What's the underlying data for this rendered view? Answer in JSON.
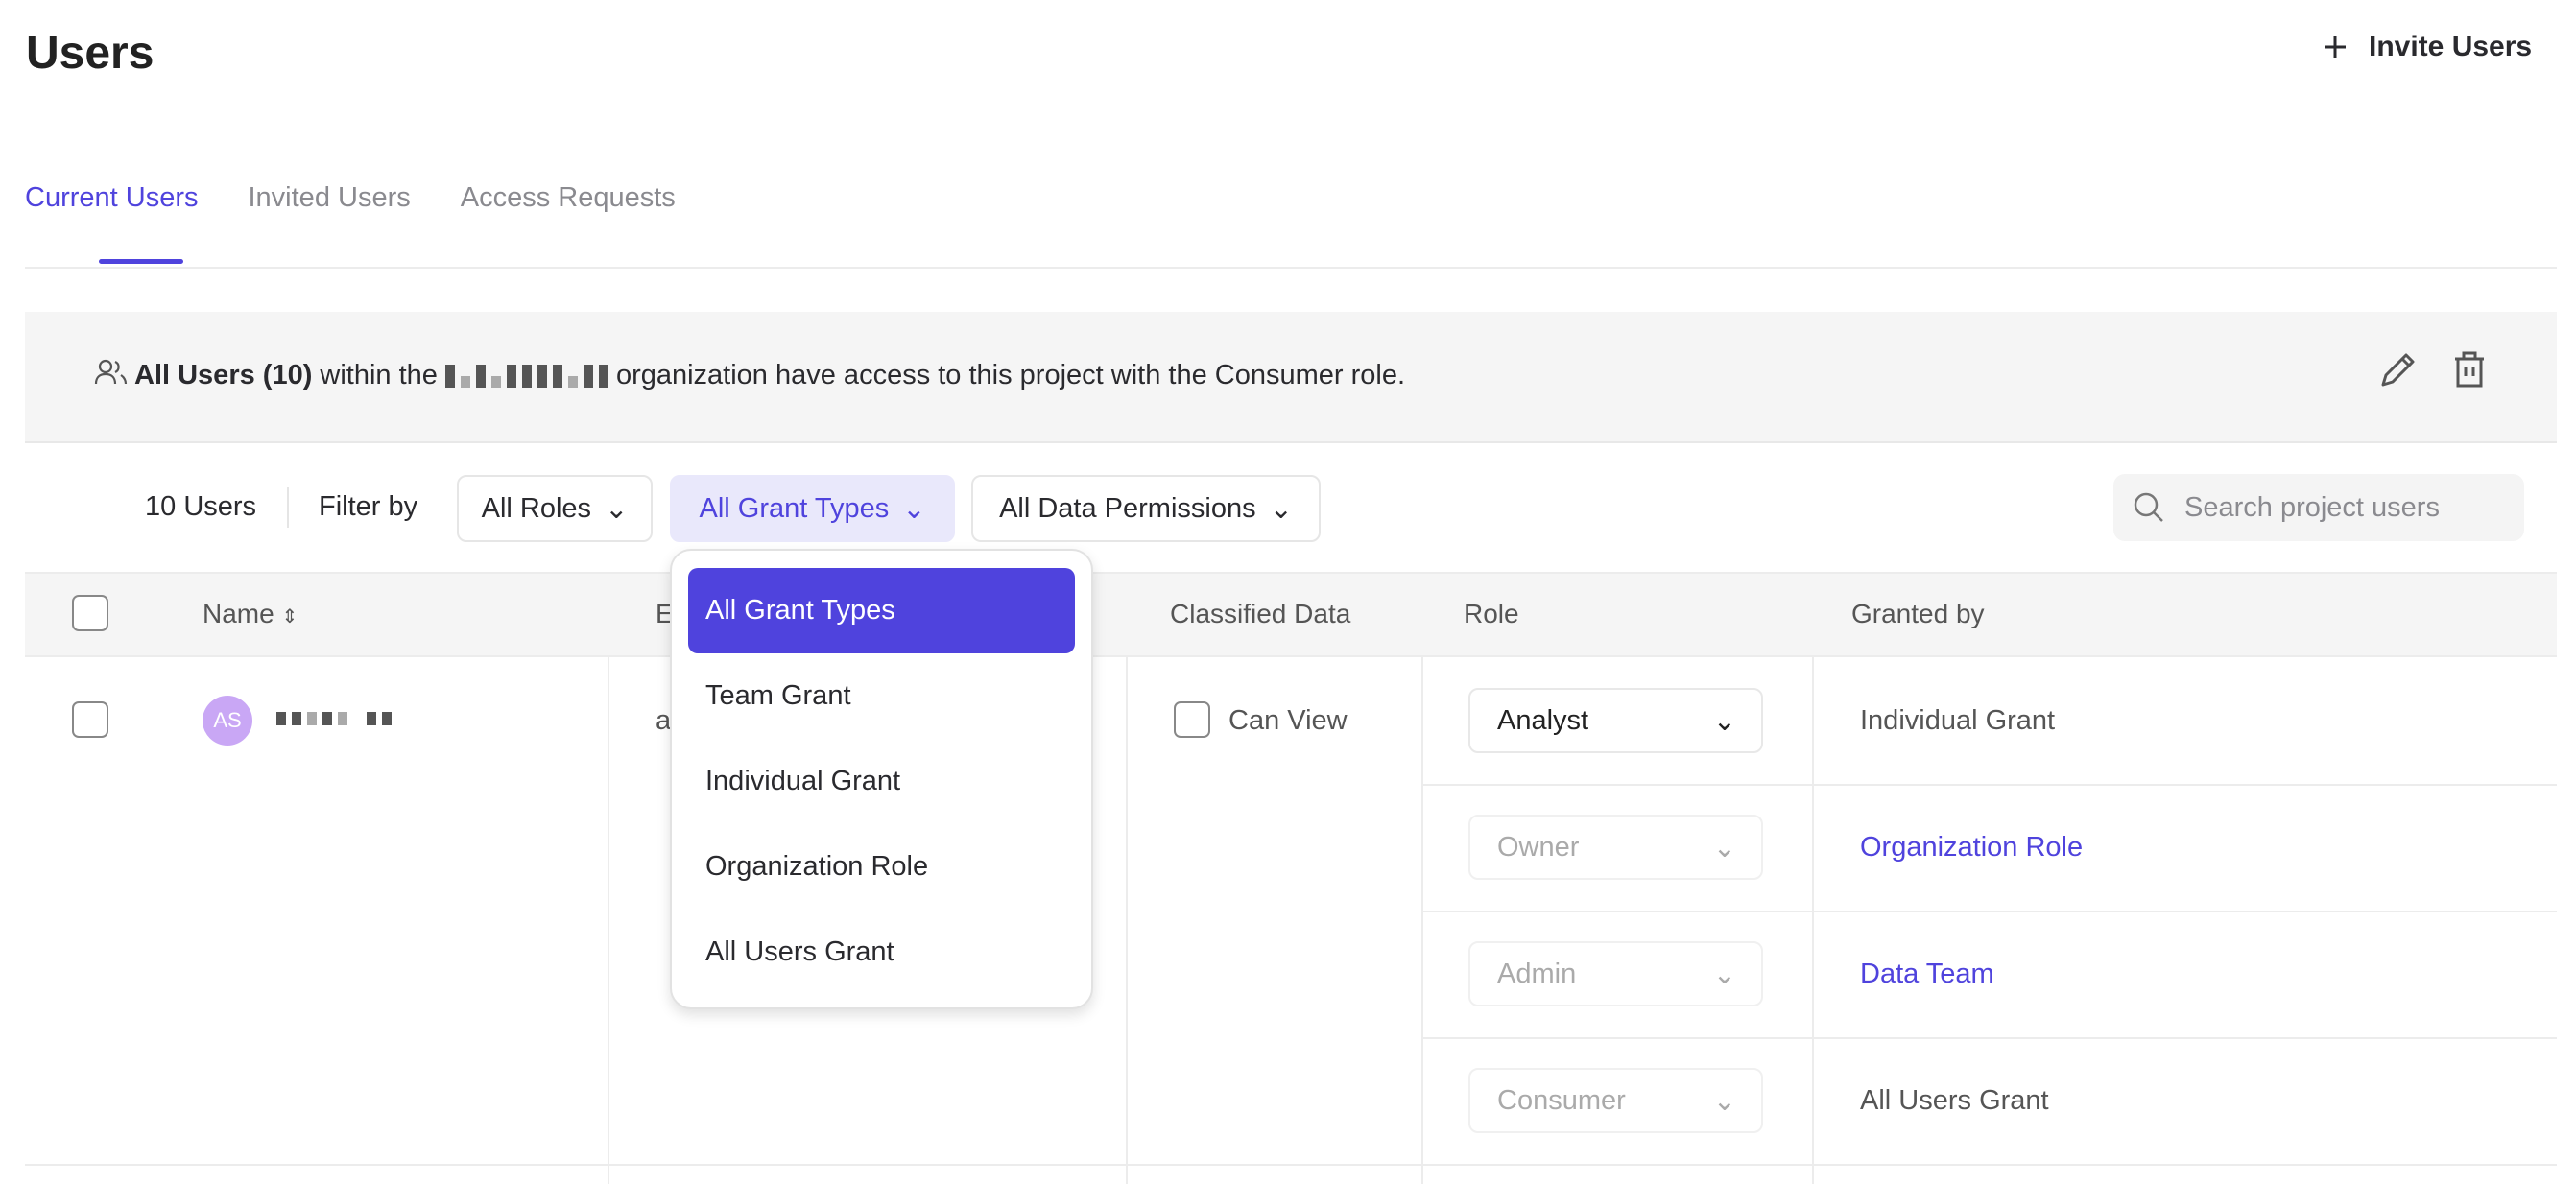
{
  "header": {
    "title": "Users",
    "invite_label": "Invite Users"
  },
  "tabs": [
    {
      "label": "Current Users",
      "active": true
    },
    {
      "label": "Invited Users"
    },
    {
      "label": "Access Requests"
    }
  ],
  "banner": {
    "bold": "All Users (10)",
    "pre": "within the",
    "post": "organization have access to this project with the Consumer role."
  },
  "filters": {
    "count": "10 Users",
    "filter_by": "Filter by",
    "roles": "All Roles",
    "grant_types": "All Grant Types",
    "data_permissions": "All Data Permissions",
    "search_placeholder": "Search project users"
  },
  "table": {
    "columns": [
      "Name",
      "Email",
      "Classified Data",
      "Role",
      "Granted by"
    ],
    "row": {
      "initials": "AS",
      "email": "a",
      "classified": "Can View",
      "grants": [
        {
          "role": "Analyst",
          "granted_by": "Individual Grant",
          "enabled": true,
          "link": false
        },
        {
          "role": "Owner",
          "granted_by": "Organization Role",
          "enabled": false,
          "link": true
        },
        {
          "role": "Admin",
          "granted_by": "Data Team",
          "enabled": false,
          "link": true
        },
        {
          "role": "Consumer",
          "granted_by": "All Users Grant",
          "enabled": false,
          "link": false
        }
      ]
    }
  },
  "dropdown": {
    "options": [
      "All Grant Types",
      "Team Grant",
      "Individual Grant",
      "Organization Role",
      "All Users Grant"
    ],
    "selected": "All Grant Types"
  },
  "colors": {
    "accent": "#4f43dd",
    "avatar": "#c9a7f5"
  }
}
